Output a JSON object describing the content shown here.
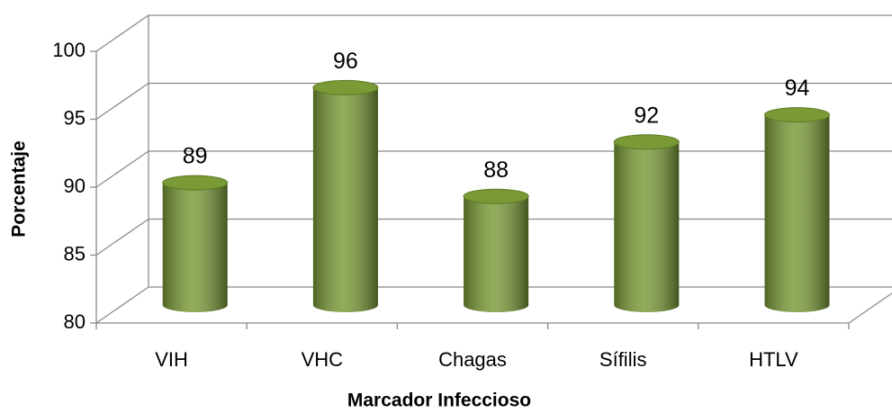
{
  "chart_data": {
    "type": "bar3d",
    "x_label": "Marcador Infeccioso",
    "y_label": "Porcentaje",
    "categories": [
      "VIH",
      "VHC",
      "Chagas",
      "Sífilis",
      "HTLV"
    ],
    "values": [
      89,
      96,
      88,
      92,
      94
    ],
    "color": "#7a9a36",
    "ylim": [
      80,
      100
    ],
    "yticks": [
      80,
      85,
      90,
      95,
      100
    ],
    "grid": true
  }
}
